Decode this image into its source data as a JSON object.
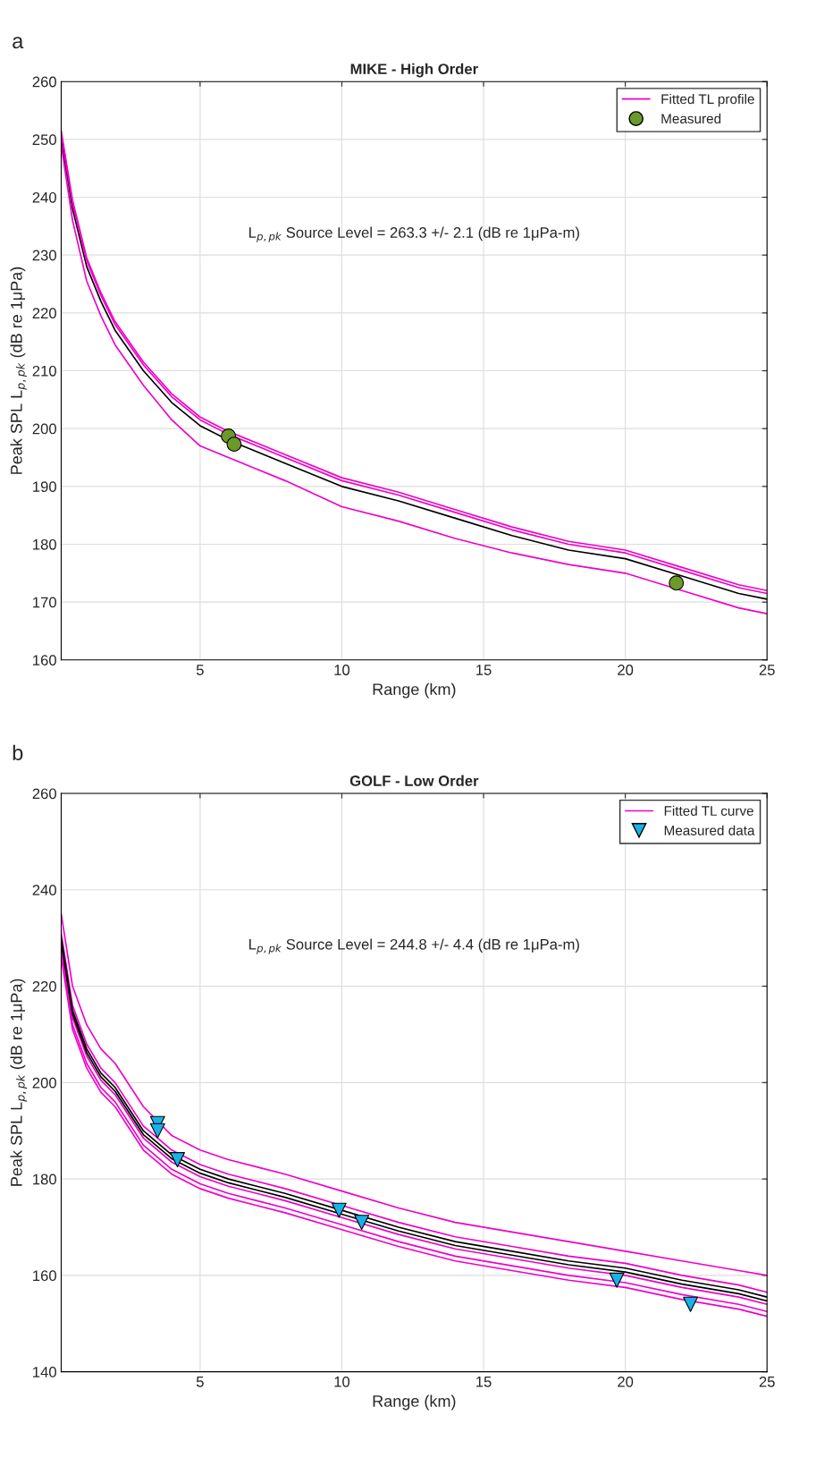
{
  "chart_data": [
    {
      "type": "line",
      "title": "MIKE - High Order",
      "xlabel": "Range (km)",
      "ylabel": "Peak SPL L$_{p,pk}$ (dB re 1μPa)",
      "annotations": [
        "a",
        "L$_{p,pk}$ Source Level = 263.3 +/- 2.1 (dB re 1μPa-m)"
      ],
      "x": [
        0.1,
        0.5,
        1,
        1.5,
        2,
        3,
        4,
        5,
        6,
        7,
        8,
        10,
        12,
        14,
        16,
        18,
        20,
        22,
        24,
        25
      ],
      "series": [
        {
          "color": "#000000",
          "values": [
            250,
            238,
            228,
            222,
            217,
            210,
            204.5,
            200.5,
            198,
            196,
            194,
            190,
            187.5,
            184.5,
            181.5,
            179,
            177.5,
            174.5,
            171.5,
            170.5
          ]
        },
        {
          "name": "Fitted TL profile",
          "color": "#f000c8",
          "values": [
            251.5,
            239.5,
            229.5,
            223.5,
            218.5,
            211.5,
            206,
            202,
            199.5,
            197.5,
            195.5,
            191.5,
            189,
            186,
            183,
            180.5,
            179,
            176,
            173,
            172
          ]
        },
        {
          "color": "#f000c8",
          "values": [
            251,
            239,
            229,
            223,
            218,
            211,
            205.5,
            201.5,
            199,
            197,
            195,
            191,
            188.5,
            185.5,
            182.5,
            180,
            178.5,
            175.5,
            172.5,
            171.5
          ]
        },
        {
          "color": "#f000c8",
          "values": [
            249,
            236,
            225.5,
            219.5,
            214.5,
            207.5,
            201.5,
            197,
            195,
            193,
            191,
            186.5,
            184,
            181,
            178.5,
            176.5,
            175,
            172,
            169,
            168
          ]
        },
        {
          "type": "scatter",
          "name": "Measured",
          "color": "#6b9a2a",
          "marker": "circle",
          "x": [
            6.0,
            6.2,
            21.8
          ],
          "values": [
            198.7,
            197.3,
            173.3
          ]
        }
      ],
      "xlim": [
        0.1,
        25
      ],
      "xticks": [
        5,
        10,
        15,
        20,
        25
      ],
      "ylim": [
        160,
        260
      ],
      "yticks": [
        160,
        170,
        180,
        190,
        200,
        210,
        220,
        230,
        240,
        250,
        260
      ],
      "grid": true,
      "legend": "top right"
    },
    {
      "type": "line",
      "title": "GOLF - Low Order",
      "xlabel": "Range (km)",
      "ylabel": "Peak SPL L$_{p,pk}$ (dB re 1μPa)",
      "annotations": [
        "b",
        "L$_{p,pk}$ Source Level = 244.8 +/- 4.4 (dB re 1μPa-m)"
      ],
      "x": [
        0.1,
        0.5,
        1,
        1.5,
        2,
        3,
        4,
        5,
        6,
        7,
        8,
        10,
        12,
        14,
        16,
        18,
        20,
        22,
        24,
        25
      ],
      "series": [
        {
          "name": "Fitted TL curve",
          "color": "#f000c8",
          "values": [
            235,
            220,
            212,
            207,
            204,
            195,
            189,
            186,
            184,
            182.5,
            181,
            177.5,
            174,
            171,
            169,
            167,
            165,
            163,
            161,
            160
          ]
        },
        {
          "color": "#f000c8",
          "values": [
            231,
            216,
            208,
            203,
            200,
            191,
            186,
            183,
            181,
            179.5,
            178,
            174.5,
            171,
            168,
            166,
            164,
            162.5,
            160,
            158,
            156.5
          ]
        },
        {
          "color": "#f000c8",
          "values": [
            228.5,
            213.5,
            205.5,
            200.5,
            197.5,
            188.5,
            183.5,
            180.5,
            178.5,
            177,
            175.5,
            172,
            168.5,
            165.5,
            163.5,
            161.5,
            160,
            157.5,
            155.5,
            154
          ]
        },
        {
          "color": "#f000c8",
          "values": [
            227,
            212,
            204,
            199,
            196,
            187,
            182,
            179,
            177,
            175.5,
            174,
            170.5,
            167,
            164,
            162,
            160,
            158.5,
            156,
            154,
            152.5
          ]
        },
        {
          "color": "#f000c8",
          "values": [
            226,
            211,
            203,
            198,
            195,
            186,
            181,
            178,
            176,
            174.5,
            173,
            169.5,
            166,
            163,
            161,
            159,
            157.5,
            155,
            153,
            151.5
          ]
        },
        {
          "color": "#000000",
          "values": [
            230,
            215,
            207,
            202,
            199,
            190,
            185,
            182,
            180,
            178.5,
            177,
            173.5,
            170,
            167,
            165,
            163,
            161.5,
            159,
            157,
            155.5
          ]
        },
        {
          "color": "#000000",
          "values": [
            229.2,
            214.2,
            206.2,
            201.2,
            198.2,
            189.2,
            184.2,
            181.2,
            179.2,
            177.7,
            176.2,
            172.7,
            169.2,
            166.2,
            164.2,
            162.2,
            160.7,
            158.2,
            156.2,
            154.7
          ]
        },
        {
          "type": "scatter",
          "name": "Measured data",
          "color": "#1ab0e8",
          "marker": "triangle",
          "x": [
            3.5,
            3.5,
            4.2,
            9.9,
            10.7,
            19.7,
            22.3
          ],
          "values": [
            191.5,
            190,
            184,
            173.5,
            171,
            159,
            154
          ]
        }
      ],
      "xlim": [
        0.1,
        25
      ],
      "xticks": [
        5,
        10,
        15,
        20,
        25
      ],
      "ylim": [
        140,
        260
      ],
      "yticks": [
        140,
        160,
        180,
        200,
        220,
        240,
        260
      ],
      "grid": true,
      "legend": "top right"
    }
  ]
}
